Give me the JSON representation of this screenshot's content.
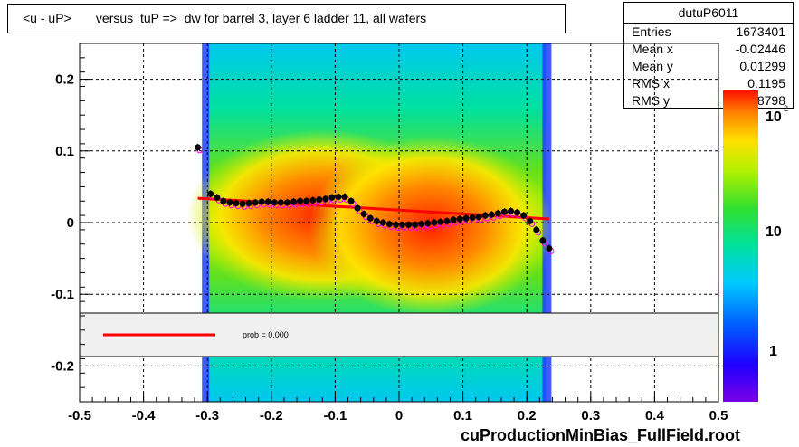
{
  "title": "<u - uP>       versus  tuP =>  dw for barrel 3, layer 6 ladder 11, all wafers",
  "footer": "cuProductionMinBias_FullField.root",
  "stats": {
    "name": "dutuP6011",
    "rows": [
      {
        "key": "Entries",
        "value": "1673401"
      },
      {
        "key": "Mean x",
        "value": "-0.02446"
      },
      {
        "key": "Mean y",
        "value": "0.01299"
      },
      {
        "key": "RMS x",
        "value": "0.1195"
      },
      {
        "key": "RMS y",
        "value": "0.08798"
      }
    ]
  },
  "legend": {
    "label": "prob = 0.000"
  },
  "colorbar": {
    "labels": [
      "10",
      "10",
      "1"
    ],
    "exponent": "2"
  },
  "colors": {
    "fit_line": "#ff0000",
    "profile_points": "#000000",
    "profile_alt": "#ff00ff"
  },
  "chart_data": {
    "type": "heatmap",
    "xlim": [
      -0.5,
      0.5
    ],
    "ylim": [
      -0.25,
      0.25
    ],
    "xticks": [
      "-0.5",
      "-0.4",
      "-0.3",
      "-0.2",
      "-0.1",
      "0",
      "0.1",
      "0.2",
      "0.3",
      "0.4",
      "0.5"
    ],
    "yticks": [
      "-0.2",
      "-0.1",
      "0",
      "0.1",
      "0.2"
    ],
    "grid": true,
    "occupied_x_range": [
      -0.3,
      0.23
    ],
    "profile_points": {
      "x": [
        -0.315,
        -0.295,
        -0.285,
        -0.275,
        -0.265,
        -0.255,
        -0.245,
        -0.235,
        -0.225,
        -0.215,
        -0.205,
        -0.195,
        -0.185,
        -0.175,
        -0.165,
        -0.155,
        -0.145,
        -0.135,
        -0.125,
        -0.115,
        -0.105,
        -0.095,
        -0.085,
        -0.075,
        -0.065,
        -0.055,
        -0.045,
        -0.035,
        -0.025,
        -0.015,
        -0.005,
        0.005,
        0.015,
        0.025,
        0.035,
        0.045,
        0.055,
        0.065,
        0.075,
        0.085,
        0.095,
        0.105,
        0.115,
        0.125,
        0.135,
        0.145,
        0.155,
        0.165,
        0.175,
        0.185,
        0.195,
        0.205,
        0.215,
        0.225,
        0.235
      ],
      "y": [
        0.105,
        0.04,
        0.035,
        0.03,
        0.028,
        0.027,
        0.026,
        0.027,
        0.028,
        0.029,
        0.029,
        0.028,
        0.028,
        0.028,
        0.029,
        0.03,
        0.03,
        0.031,
        0.032,
        0.033,
        0.035,
        0.036,
        0.036,
        0.03,
        0.02,
        0.012,
        0.006,
        0.002,
        0.0,
        -0.002,
        -0.003,
        -0.003,
        -0.003,
        -0.003,
        -0.002,
        -0.001,
        0.0,
        0.001,
        0.002,
        0.004,
        0.005,
        0.006,
        0.007,
        0.008,
        0.01,
        0.011,
        0.013,
        0.015,
        0.016,
        0.014,
        0.01,
        0.002,
        -0.01,
        -0.025,
        -0.036
      ]
    },
    "fit_line": {
      "x": [
        -0.315,
        0.235
      ],
      "y": [
        0.034,
        0.005
      ]
    }
  }
}
